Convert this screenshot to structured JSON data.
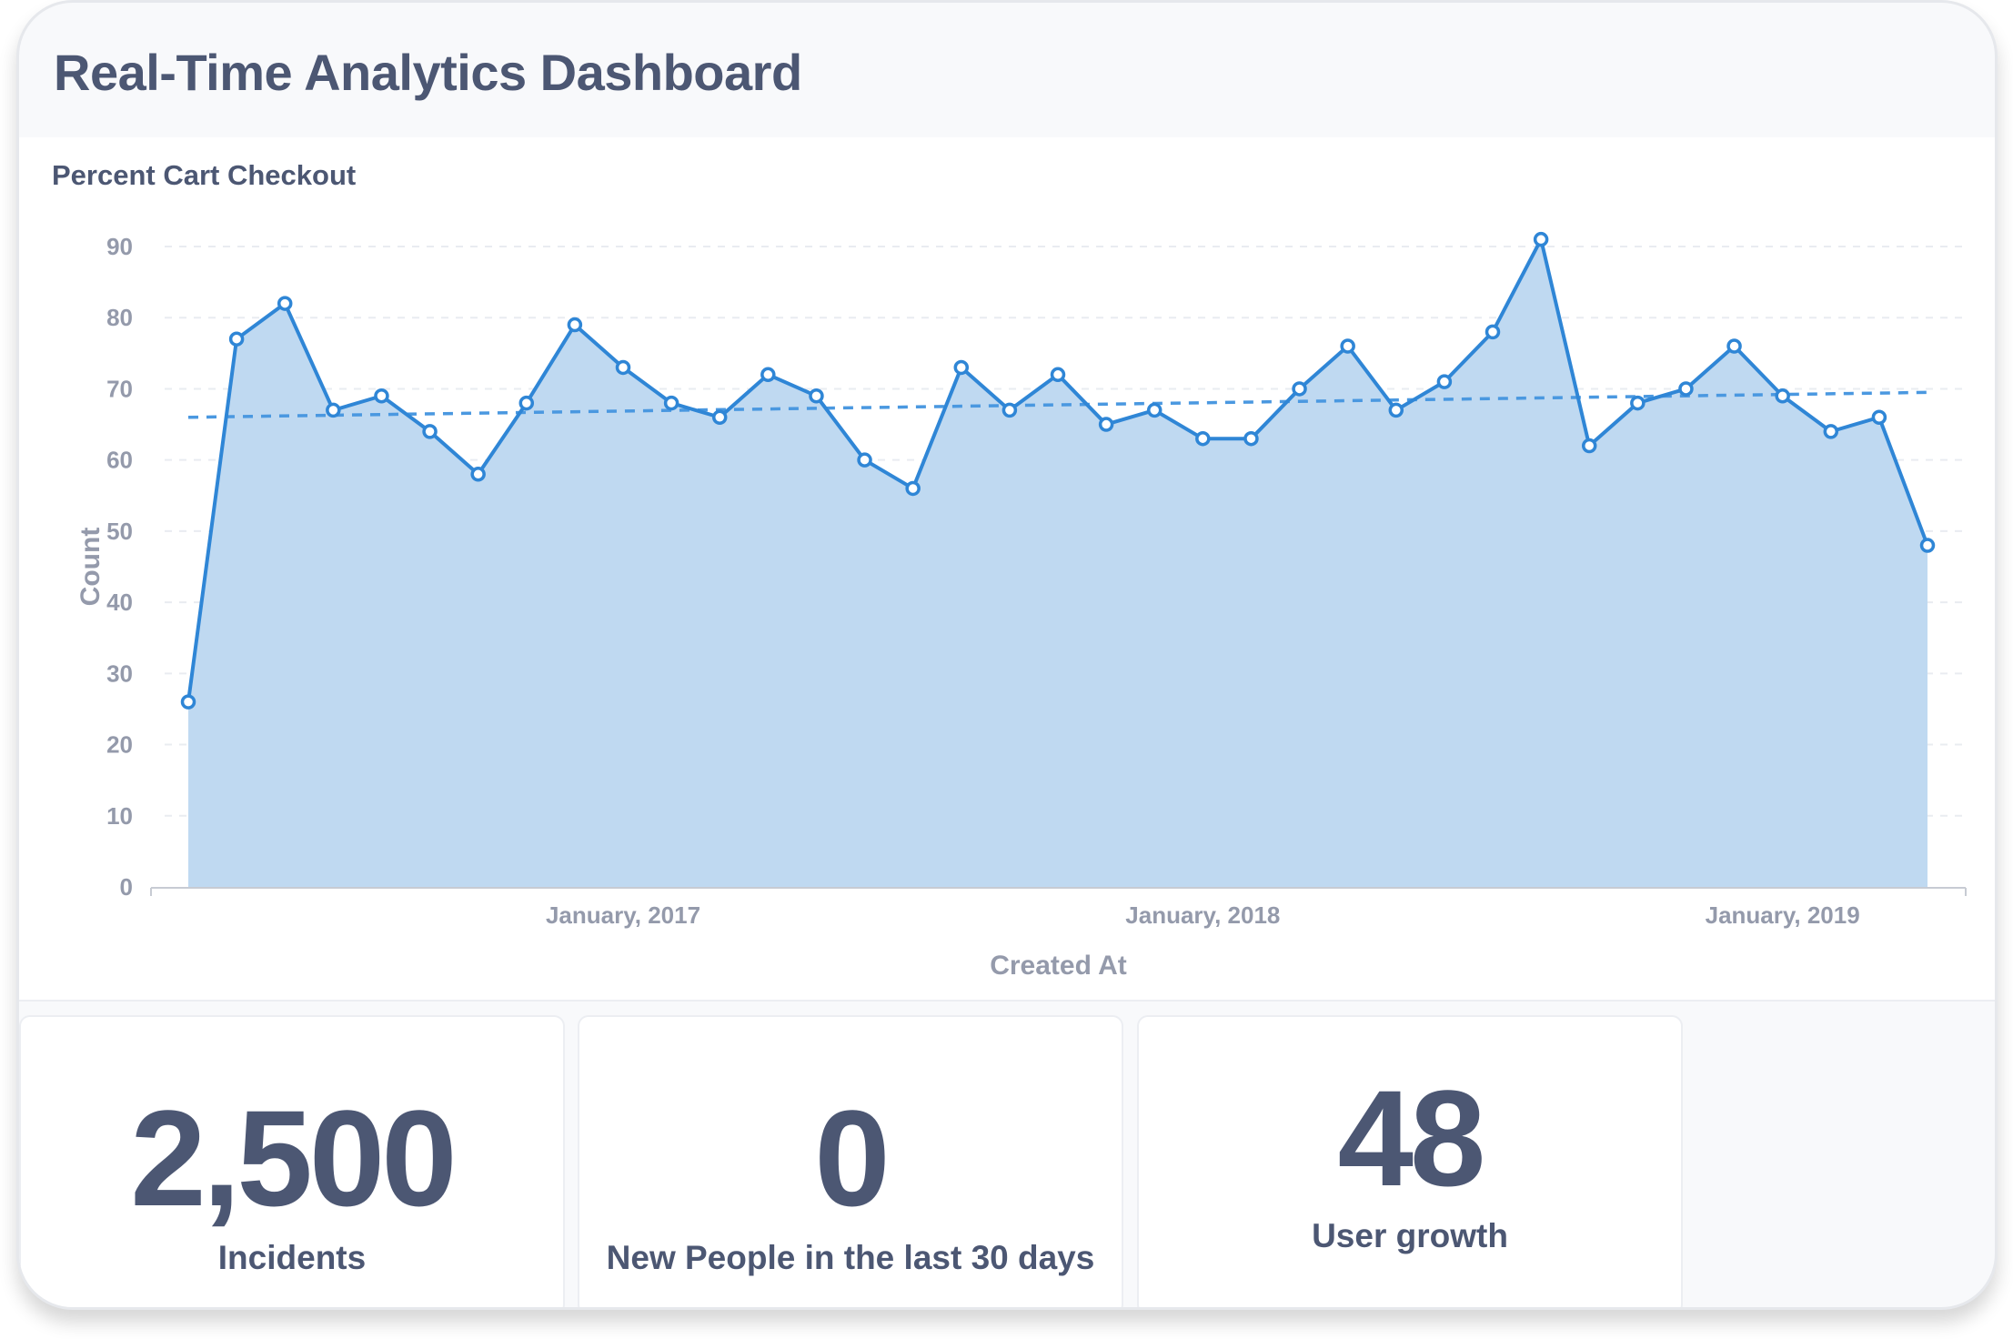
{
  "header": {
    "title": "Real-Time Analytics Dashboard"
  },
  "chart_card": {
    "title": "Percent Cart Checkout"
  },
  "kpis": [
    {
      "value": "2,500",
      "label": "Incidents"
    },
    {
      "value": "0",
      "label": "New People in the last 30 days"
    },
    {
      "value": "48",
      "label": "User growth"
    }
  ],
  "colors": {
    "line": "#2f86d6",
    "area": "#bfd9f1",
    "text": "#4c5773",
    "axis": "#949aab"
  },
  "chart_data": {
    "type": "area",
    "title": "Percent Cart Checkout",
    "xlabel": "Created At",
    "ylabel": "Count",
    "ylim": [
      0,
      90
    ],
    "yticks": [
      0,
      10,
      20,
      30,
      40,
      50,
      60,
      70,
      80,
      90
    ],
    "xtick_labels": [
      {
        "label": "January, 2017",
        "index": 9
      },
      {
        "label": "January, 2018",
        "index": 21
      },
      {
        "label": "January, 2019",
        "index": 33
      }
    ],
    "grid": true,
    "series": [
      {
        "name": "Count",
        "values": [
          26,
          77,
          82,
          67,
          69,
          64,
          58,
          68,
          79,
          73,
          68,
          66,
          72,
          69,
          60,
          56,
          73,
          67,
          72,
          65,
          67,
          63,
          63,
          70,
          76,
          67,
          71,
          78,
          91,
          62,
          68,
          70,
          76,
          69,
          64,
          66,
          48
        ]
      }
    ],
    "trendline": {
      "start": 66,
      "end": 69.5
    }
  }
}
